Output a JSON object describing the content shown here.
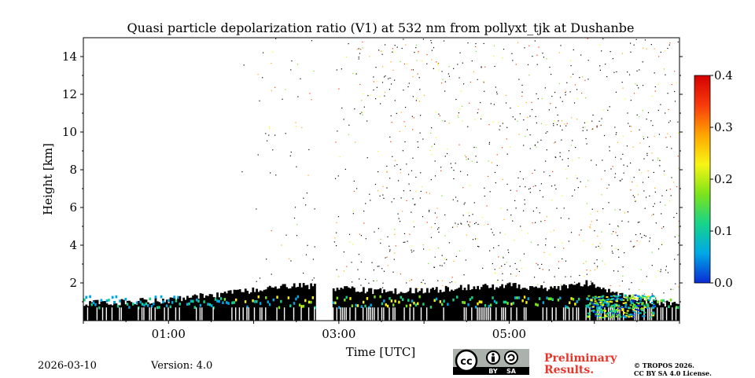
{
  "chart_data": {
    "type": "heatmap",
    "title": "Quasi particle depolarization ratio (V1) at 532 nm from pollyxt_tjk at Dushanbe",
    "xlabel": "Time [UTC]",
    "ylabel": "Height [km]",
    "x_range_hours": [
      0.0,
      7.0
    ],
    "ylim": [
      0,
      15
    ],
    "x_ticks": [
      {
        "value": 1.0,
        "label": "01:00"
      },
      {
        "value": 3.0,
        "label": "03:00"
      },
      {
        "value": 5.0,
        "label": "05:00"
      }
    ],
    "y_ticks": [
      {
        "value": 2,
        "label": "2"
      },
      {
        "value": 4,
        "label": "4"
      },
      {
        "value": 6,
        "label": "6"
      },
      {
        "value": 8,
        "label": "8"
      },
      {
        "value": 10,
        "label": "10"
      },
      {
        "value": 12,
        "label": "12"
      },
      {
        "value": 14,
        "label": "14"
      }
    ],
    "colorbar": {
      "min": 0.0,
      "max": 0.4,
      "ticks": [
        {
          "value": 0.0,
          "label": "0.0"
        },
        {
          "value": 0.1,
          "label": "0.1"
        },
        {
          "value": 0.2,
          "label": "0.2"
        },
        {
          "value": 0.3,
          "label": "0.3"
        },
        {
          "value": 0.4,
          "label": "0.4"
        }
      ],
      "colors": [
        "#0a2bd4",
        "#00a8e8",
        "#16d48a",
        "#7de31a",
        "#f7f514",
        "#ffa500",
        "#f83a0c",
        "#d40000"
      ]
    },
    "boundary_layer_top_km": [
      {
        "t": 0.0,
        "h": 0.9
      },
      {
        "t": 0.5,
        "h": 1.0
      },
      {
        "t": 1.0,
        "h": 1.1
      },
      {
        "t": 1.5,
        "h": 1.35
      },
      {
        "t": 2.0,
        "h": 1.6
      },
      {
        "t": 2.5,
        "h": 1.85
      },
      {
        "t": 2.75,
        "h": 1.8
      },
      {
        "t": 3.0,
        "h": 1.7
      },
      {
        "t": 3.5,
        "h": 1.55
      },
      {
        "t": 4.0,
        "h": 1.6
      },
      {
        "t": 4.5,
        "h": 1.75
      },
      {
        "t": 5.0,
        "h": 1.85
      },
      {
        "t": 5.5,
        "h": 1.7
      },
      {
        "t": 5.9,
        "h": 2.0
      },
      {
        "t": 6.5,
        "h": 1.1
      },
      {
        "t": 7.0,
        "h": 0.8
      }
    ],
    "data_gaps_hours": [
      [
        2.72,
        2.92
      ]
    ]
  },
  "footer": {
    "date": "2026-03-10",
    "version": "Version: 4.0",
    "preliminary_line1": "Preliminary",
    "preliminary_line2": "Results.",
    "copyright_line1": "© TROPOS 2026.",
    "copyright_line2": "CC BY SA 4.0 License.",
    "badge_cc": "cc",
    "badge_by": "BY",
    "badge_sa": "SA"
  }
}
